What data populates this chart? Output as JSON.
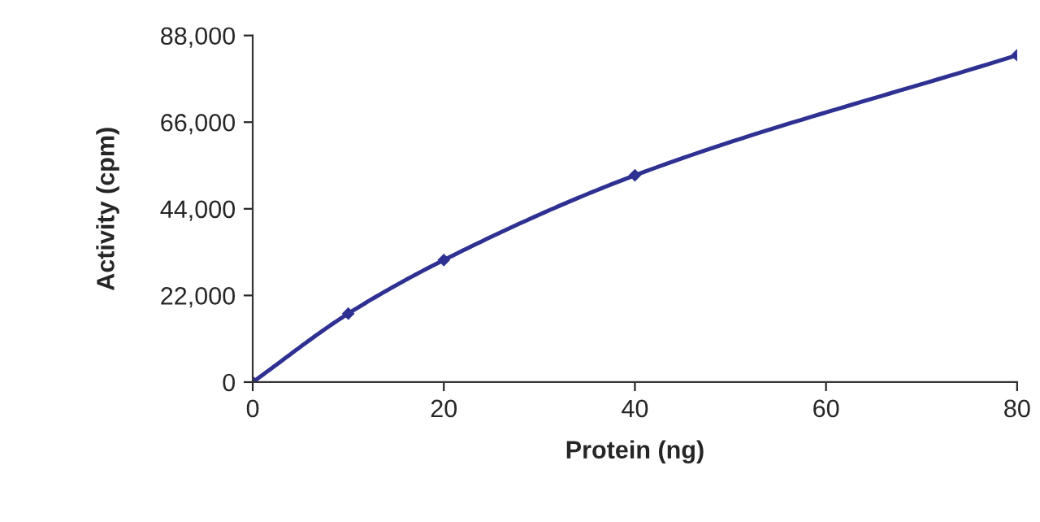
{
  "chart_data": {
    "type": "line",
    "xlabel": "Protein (ng)",
    "ylabel": "Activity (cpm)",
    "x": [
      0,
      10,
      20,
      40,
      80
    ],
    "series": [
      {
        "color": "#2e3192",
        "values": [
          0,
          17400,
          31000,
          52500,
          83000
        ]
      }
    ],
    "xlim": [
      0,
      80
    ],
    "xticks": [
      0,
      20,
      40,
      60,
      80
    ],
    "ylim": [
      0,
      88000
    ],
    "yticks": [
      {
        "value": 0,
        "label": "0"
      },
      {
        "value": 22000,
        "label": "22,000"
      },
      {
        "value": 44000,
        "label": "44,000"
      },
      {
        "value": 66000,
        "label": "66,000"
      },
      {
        "value": 88000,
        "label": "88,000"
      }
    ],
    "grid": false,
    "marker": "diamond",
    "line_style": "solid"
  }
}
